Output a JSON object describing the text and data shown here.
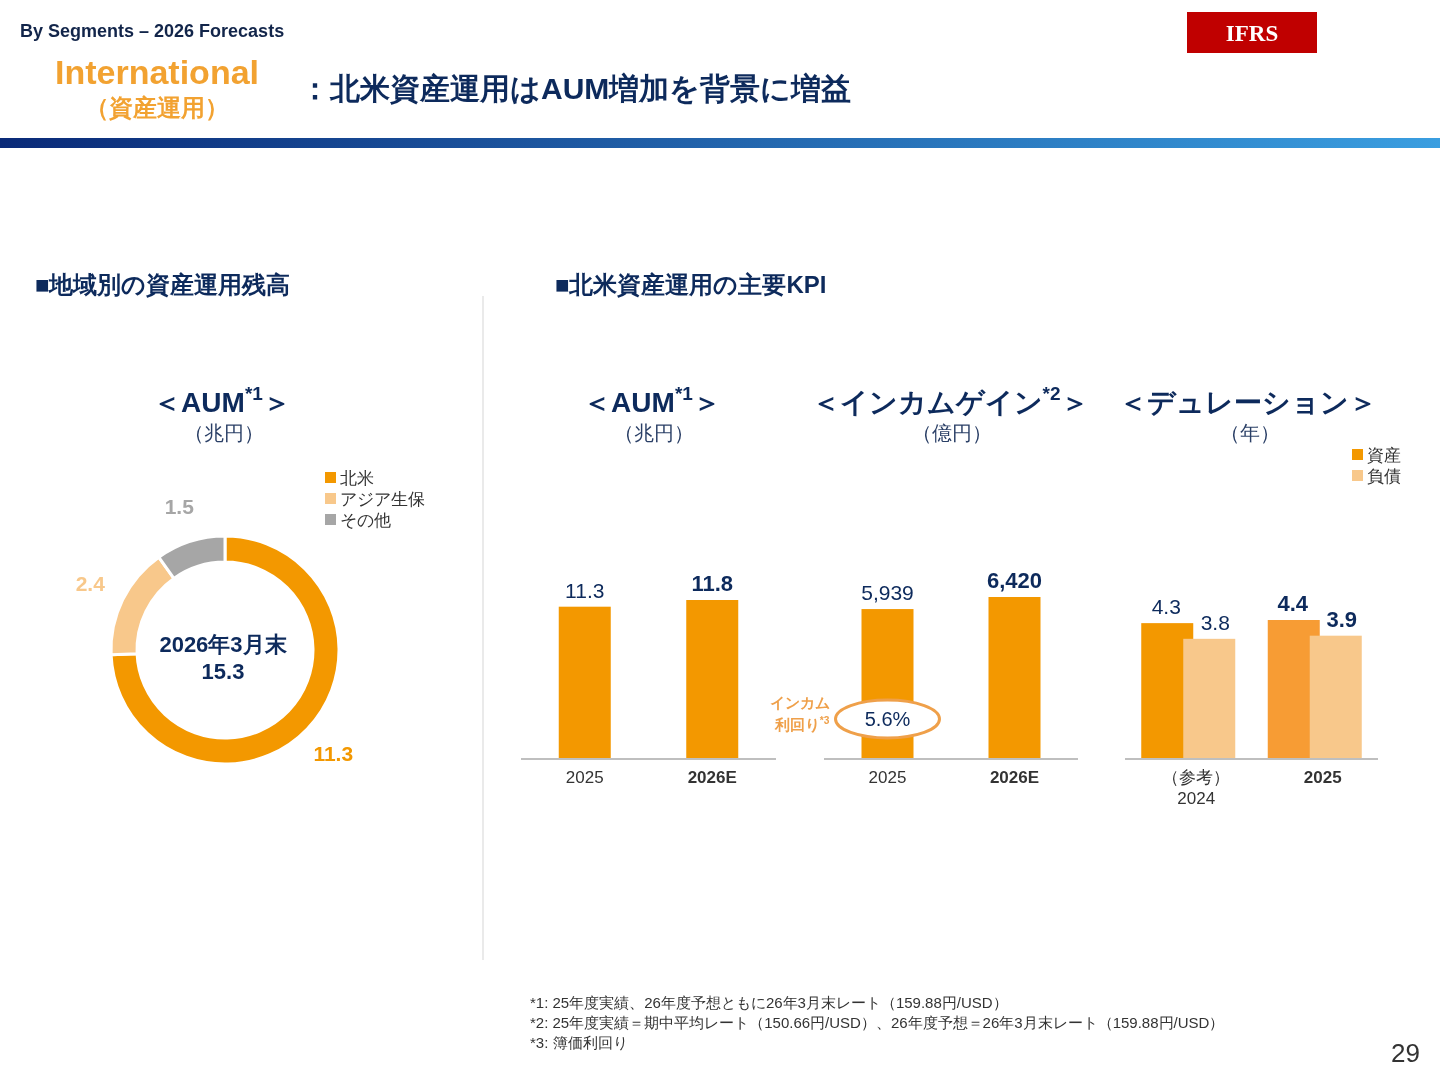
{
  "chart_data": [
    {
      "type": "other",
      "title": "：北米資産運用はAUM増加を背景に増益",
      "subtitle": "By Segments – 2026 Forecasts",
      "annotations": [
        "International",
        "（資産運用）",
        "IFRS",
        "■地域別の資産運用残高",
        "■北米資産運用の主要KPI",
        "*1: 25年度実績、26年度予想ともに26年3月末レート（159.88円/USD）",
        "*2: 25年度実績＝期中平均レート（150.66円/USD）、26年度予想＝26年3月末レート（159.88円/USD）",
        "*3: 簿価利回り",
        "29"
      ]
    },
    {
      "type": "donut",
      "title": "＜AUM$^{*1}$＞",
      "subtitle": "（兆円）",
      "categories": [
        "北米",
        "アジア生保",
        "その他"
      ],
      "values": [
        11.3,
        2.4,
        1.5
      ],
      "colors": [
        "#F39800",
        "#F8C88B",
        "#A6A6A6"
      ],
      "data_labels": true,
      "legend": "top right",
      "annotations": [
        "2026年3月末",
        "15.3"
      ]
    },
    {
      "type": "bar",
      "title": "＜AUM$^{*1}$＞",
      "subtitle": "（兆円）",
      "categories": [
        "2025",
        "2026E"
      ],
      "values": [
        11.3,
        11.8
      ],
      "color": "#F39800",
      "data_labels": true
    },
    {
      "type": "bar",
      "title": "＜インカムゲイン$^{*2}$＞",
      "subtitle": "（億円）",
      "categories": [
        "2025",
        "2026E"
      ],
      "values": [
        5939,
        6420
      ],
      "value_labels": [
        "5,939",
        "6,420"
      ],
      "color": "#F39800",
      "annotations": [
        "インカム利回り$^{*3}$",
        "5.6%"
      ]
    },
    {
      "type": "bar",
      "title": "＜デュレーション＞",
      "subtitle": "（年）",
      "categories": [
        "（参考）\n2024",
        "2025"
      ],
      "series": [
        {
          "name": "資産",
          "color": "#F39800",
          "colors": [
            "#F39800",
            "#F79C34"
          ],
          "values": [
            4.3,
            4.4
          ]
        },
        {
          "name": "負債",
          "color": "#F8C88B",
          "values": [
            3.8,
            3.9
          ]
        }
      ],
      "data_labels": true,
      "legend": "top right"
    }
  ]
}
